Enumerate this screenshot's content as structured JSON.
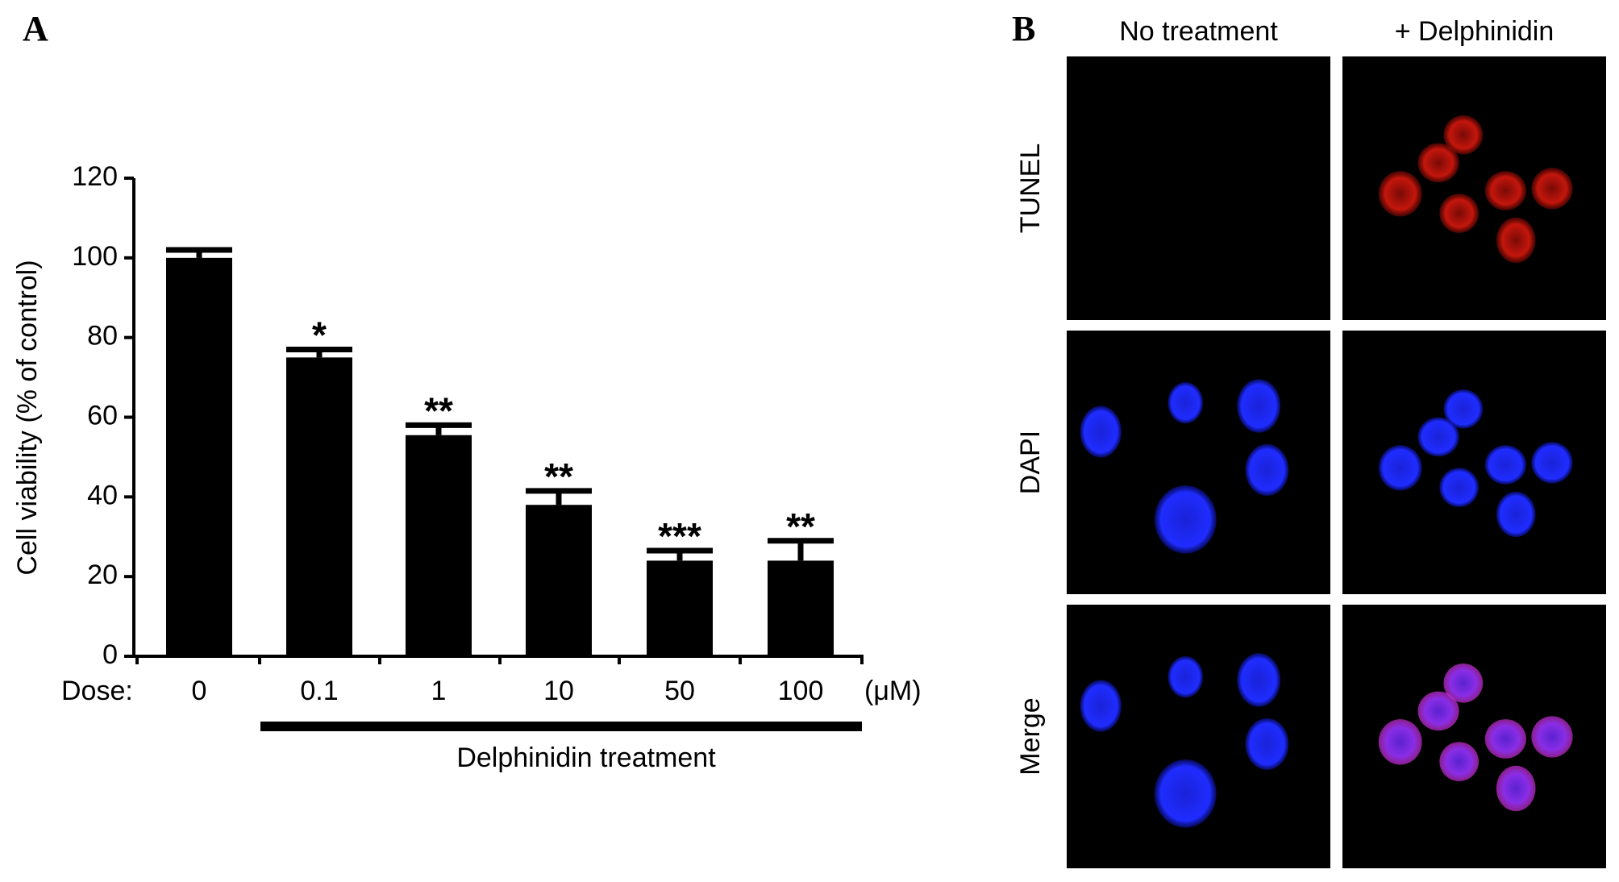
{
  "chart_data": {
    "type": "bar",
    "panel_labels": [
      "A",
      "B"
    ],
    "ylabel": "Cell viability (% of control)",
    "x_prefix": "Dose:",
    "x_unit": "(μM)",
    "group_label": "Delphinidin treatment",
    "categories": [
      "0",
      "0.1",
      "1",
      "10",
      "50",
      "100"
    ],
    "values": [
      100,
      75,
      55.5,
      38,
      24,
      24
    ],
    "errors": [
      2,
      2,
      2.5,
      3.5,
      2.5,
      5
    ],
    "annotations": [
      null,
      "*",
      "**",
      "**",
      "***",
      "**"
    ],
    "color": "#000000",
    "ylim": [
      0,
      120
    ],
    "yticks": [
      0,
      20,
      40,
      60,
      80,
      100,
      120
    ],
    "grid": false,
    "images": {
      "columns": [
        "No treatment",
        "+ Delphinidin"
      ],
      "rows": [
        "TUNEL",
        "DAPI",
        "Merge"
      ]
    }
  }
}
